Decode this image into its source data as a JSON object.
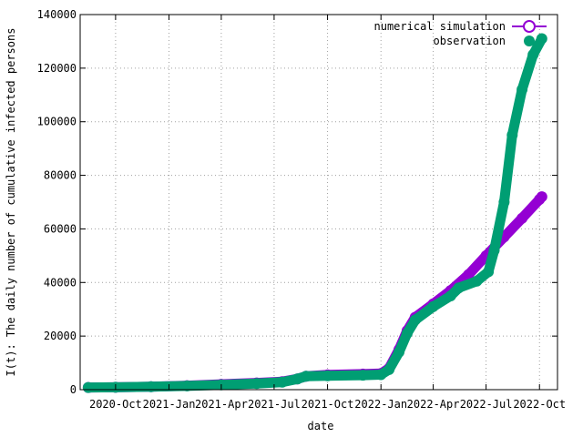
{
  "chart_data": {
    "type": "scatter",
    "title": "",
    "xlabel": "date",
    "ylabel": "I(t): The daily number of cumulative infected persons",
    "xlim": [
      "2020-08-01",
      "2022-11-01"
    ],
    "ylim": [
      0,
      140000
    ],
    "y_ticks": [
      0,
      20000,
      40000,
      60000,
      80000,
      100000,
      120000,
      140000
    ],
    "x_ticks": [
      {
        "date": "2020-10-01",
        "label": "2020-Oct"
      },
      {
        "date": "2021-01-01",
        "label": "2021-Jan"
      },
      {
        "date": "2021-04-01",
        "label": "2021-Apr"
      },
      {
        "date": "2021-07-01",
        "label": "2021-Jul"
      },
      {
        "date": "2021-10-01",
        "label": "2021-Oct"
      },
      {
        "date": "2022-01-01",
        "label": "2022-Jan"
      },
      {
        "date": "2022-04-01",
        "label": "2022-Apr"
      },
      {
        "date": "2022-07-01",
        "label": "2022-Jul"
      },
      {
        "date": "2022-10-01",
        "label": "2022-Oct"
      }
    ],
    "grid": true,
    "legend_position": "top-right",
    "series": [
      {
        "name": "numerical simulation",
        "color": "#9400d3",
        "points": [
          [
            "2020-08-15",
            800
          ],
          [
            "2020-10-01",
            900
          ],
          [
            "2020-12-01",
            1100
          ],
          [
            "2021-02-01",
            1500
          ],
          [
            "2021-04-01",
            2000
          ],
          [
            "2021-06-01",
            2500
          ],
          [
            "2021-07-15",
            3000
          ],
          [
            "2021-08-10",
            4000
          ],
          [
            "2021-08-25",
            5000
          ],
          [
            "2021-10-01",
            5500
          ],
          [
            "2021-12-01",
            5800
          ],
          [
            "2022-01-01",
            6000
          ],
          [
            "2022-01-15",
            8000
          ],
          [
            "2022-02-01",
            15000
          ],
          [
            "2022-02-15",
            22000
          ],
          [
            "2022-03-01",
            27000
          ],
          [
            "2022-04-01",
            32000
          ],
          [
            "2022-05-01",
            37000
          ],
          [
            "2022-06-01",
            43000
          ],
          [
            "2022-07-01",
            50000
          ],
          [
            "2022-08-01",
            57000
          ],
          [
            "2022-09-01",
            64000
          ],
          [
            "2022-10-01",
            71000
          ],
          [
            "2022-10-05",
            72000
          ]
        ]
      },
      {
        "name": "observation",
        "color": "#009e73",
        "points": [
          [
            "2020-08-15",
            800
          ],
          [
            "2020-10-01",
            900
          ],
          [
            "2020-12-01",
            1100
          ],
          [
            "2021-02-01",
            1400
          ],
          [
            "2021-04-01",
            1800
          ],
          [
            "2021-06-01",
            2300
          ],
          [
            "2021-07-15",
            2800
          ],
          [
            "2021-08-10",
            4000
          ],
          [
            "2021-08-25",
            5000
          ],
          [
            "2021-10-01",
            5200
          ],
          [
            "2021-12-01",
            5400
          ],
          [
            "2022-01-01",
            5600
          ],
          [
            "2022-01-15",
            7500
          ],
          [
            "2022-02-01",
            14000
          ],
          [
            "2022-02-15",
            21000
          ],
          [
            "2022-03-01",
            26000
          ],
          [
            "2022-04-01",
            31000
          ],
          [
            "2022-05-01",
            35000
          ],
          [
            "2022-05-15",
            38000
          ],
          [
            "2022-06-15",
            40500
          ],
          [
            "2022-07-05",
            44000
          ],
          [
            "2022-07-15",
            52000
          ],
          [
            "2022-08-01",
            70000
          ],
          [
            "2022-08-15",
            95000
          ],
          [
            "2022-09-01",
            112000
          ],
          [
            "2022-09-20",
            125000
          ],
          [
            "2022-10-05",
            131000
          ]
        ]
      }
    ]
  }
}
